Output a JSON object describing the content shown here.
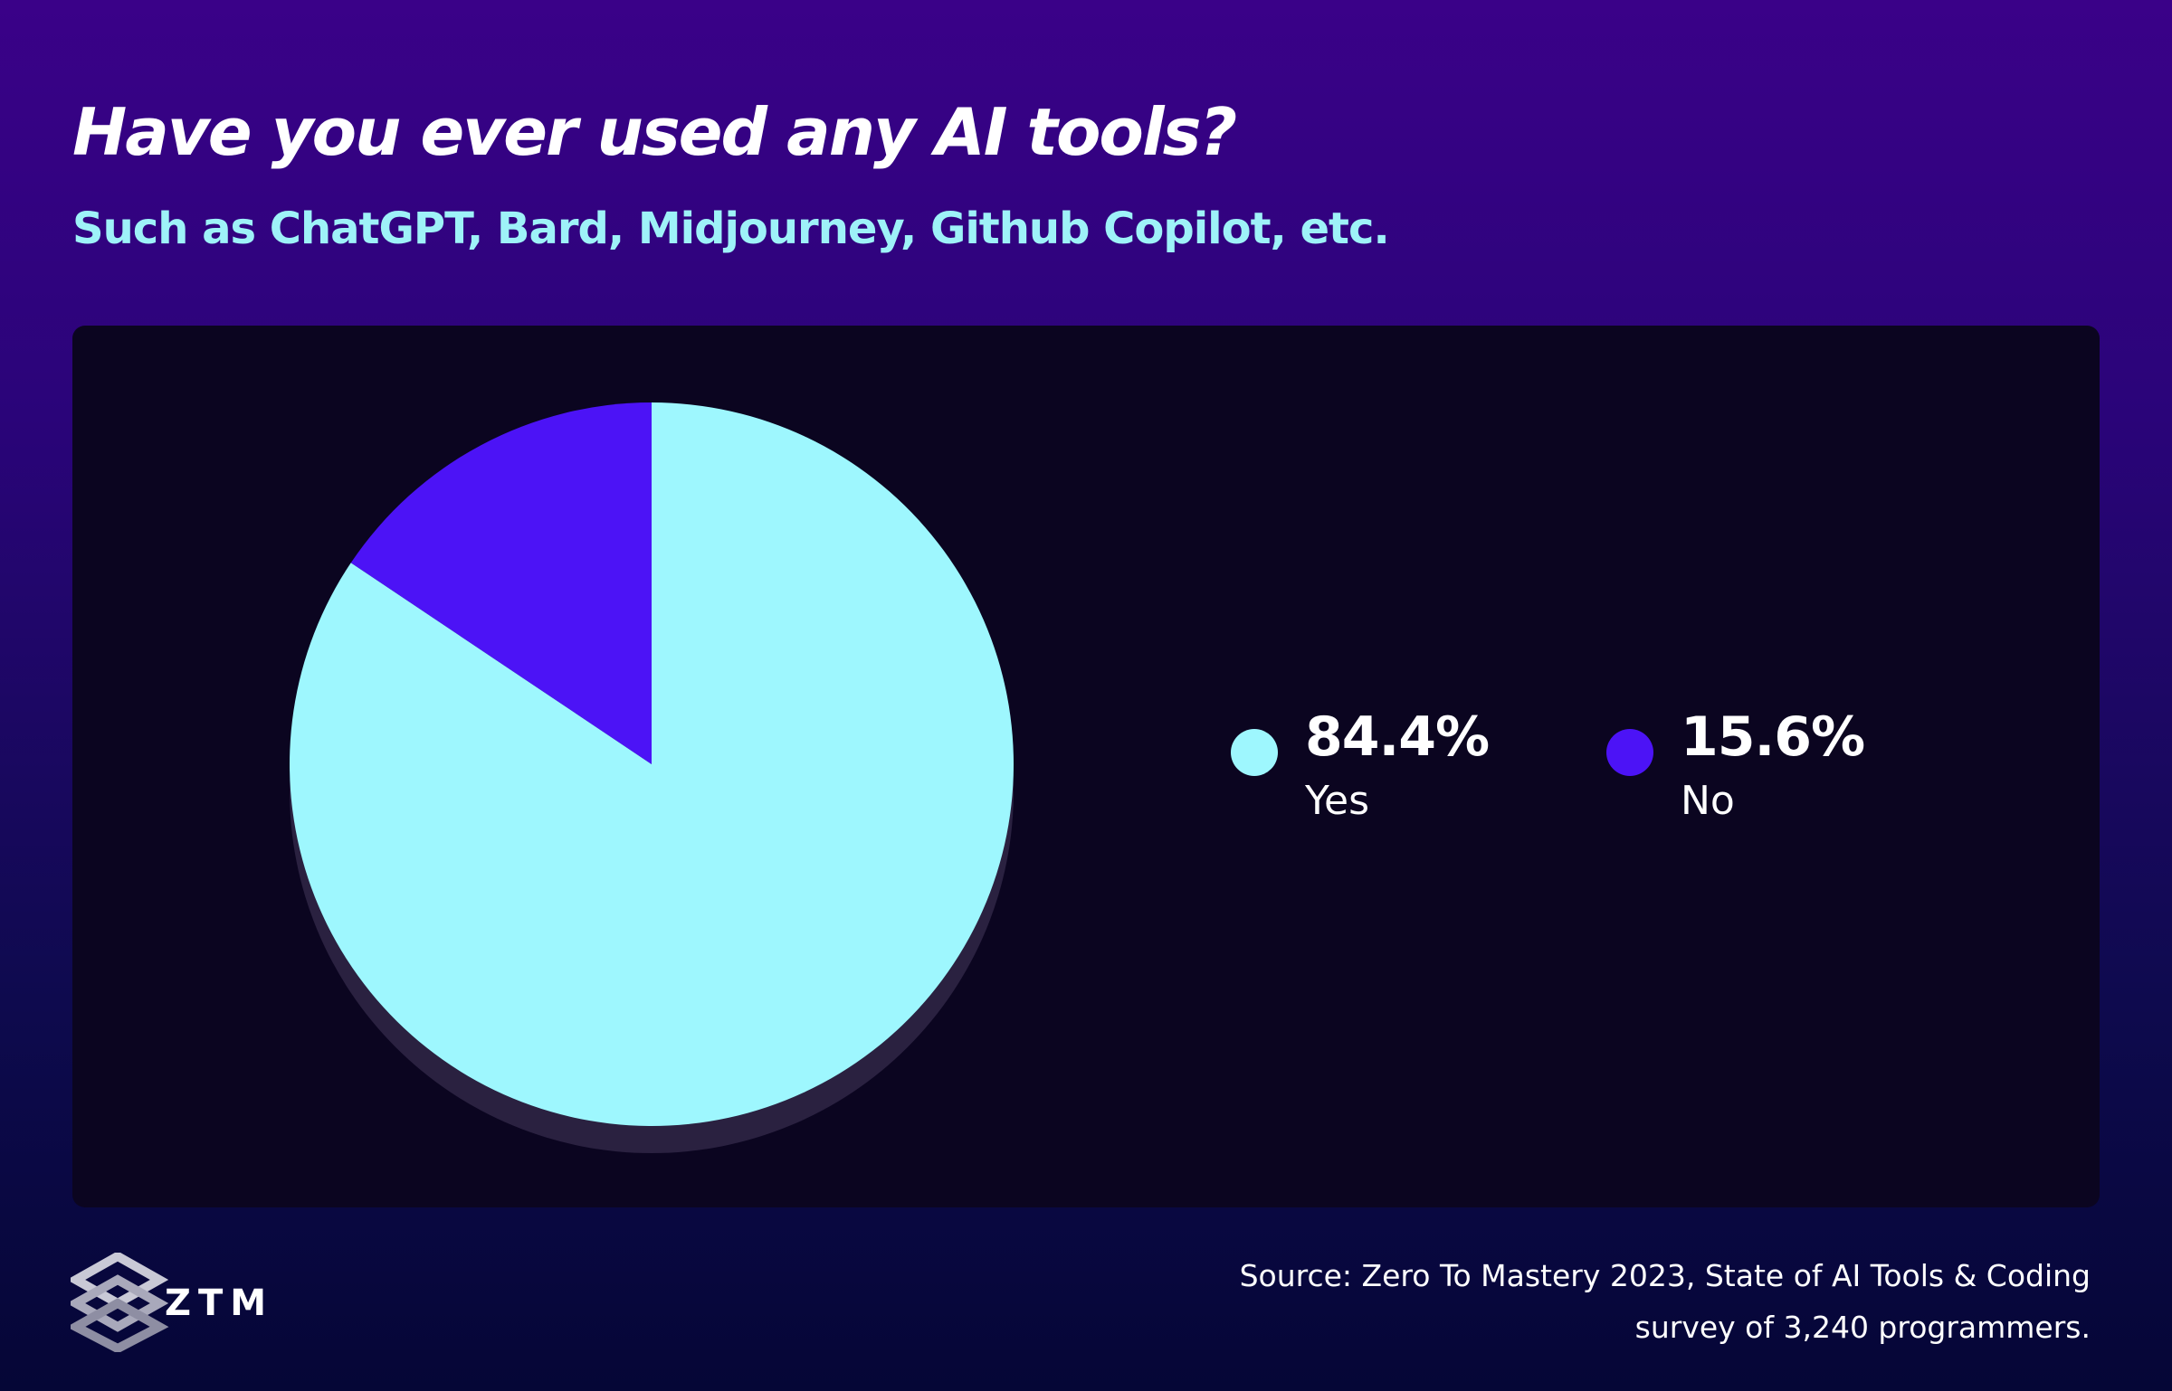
{
  "chart_data": {
    "type": "pie",
    "title": "Have you ever used any AI tools?",
    "subtitle": "Such as ChatGPT, Bard, Midjourney, Github Copilot, etc.",
    "slices": [
      {
        "label": "Yes",
        "value": 84.4,
        "value_label": "84.4%",
        "color": "#9ef7fe"
      },
      {
        "label": "No",
        "value": 15.6,
        "value_label": "15.6%",
        "color": "#4c13f6"
      }
    ],
    "legend_position": "right"
  },
  "branding": {
    "logo_text": "ZTM"
  },
  "source": {
    "line1": "Source: Zero To Mastery 2023, State of AI Tools & Coding",
    "line2": "survey of 3,240 programmers."
  },
  "colors": {
    "subtitle": "#9ef2f8",
    "panel": "#0b0520",
    "shadow": "#2a2140"
  }
}
